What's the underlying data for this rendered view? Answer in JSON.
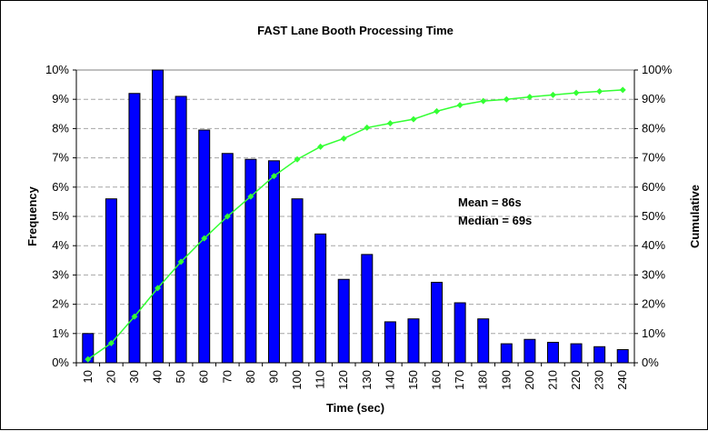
{
  "chart_data": {
    "type": "bar",
    "title": "FAST Lane Booth Processing Time",
    "xlabel": "Time (sec)",
    "ylabel": "Frequency",
    "y2label": "Cumulative",
    "categories": [
      "10",
      "20",
      "30",
      "40",
      "50",
      "60",
      "70",
      "80",
      "90",
      "100",
      "110",
      "120",
      "130",
      "140",
      "150",
      "160",
      "170",
      "180",
      "190",
      "200",
      "210",
      "220",
      "230",
      "240"
    ],
    "ylim": [
      0,
      10
    ],
    "yticks": [
      "0%",
      "1%",
      "2%",
      "3%",
      "4%",
      "5%",
      "6%",
      "7%",
      "8%",
      "9%",
      "10%"
    ],
    "y2lim": [
      0,
      100
    ],
    "y2ticks": [
      "0%",
      "10%",
      "20%",
      "30%",
      "40%",
      "50%",
      "60%",
      "70%",
      "80%",
      "90%",
      "100%"
    ],
    "grid": true,
    "series": [
      {
        "type": "bar",
        "axis": "left",
        "color": "#0000ff",
        "values": [
          1.0,
          5.6,
          9.2,
          10.0,
          9.1,
          7.95,
          7.15,
          6.95,
          6.9,
          5.6,
          4.4,
          2.85,
          3.7,
          1.4,
          1.5,
          2.75,
          2.05,
          1.5,
          0.65,
          0.8,
          0.7,
          0.65,
          0.55,
          0.45
        ]
      },
      {
        "type": "line",
        "axis": "right",
        "color": "#33ff33",
        "values": [
          1.2,
          6.7,
          15.8,
          25.5,
          34.5,
          42.5,
          50.0,
          56.8,
          63.8,
          69.5,
          73.8,
          76.6,
          80.3,
          81.8,
          83.2,
          85.9,
          88.0,
          89.4,
          90.0,
          90.8,
          91.5,
          92.2,
          92.7,
          93.2
        ]
      }
    ],
    "annotations": [
      "Mean = 86s",
      "Median = 69s"
    ]
  }
}
